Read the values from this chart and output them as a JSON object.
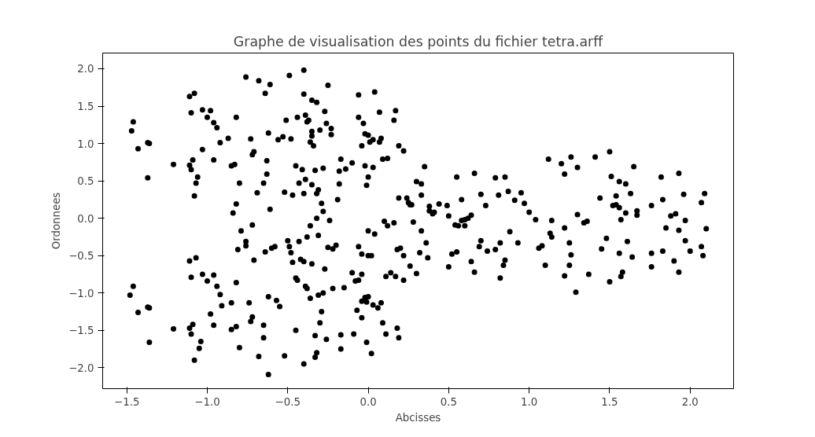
{
  "chart_data": {
    "type": "scatter",
    "title": "Graphe de visualisation des points du fichier tetra.arff",
    "xlabel": "Abcisses",
    "ylabel": "Ordonnees",
    "xlim": [
      -1.65,
      2.27
    ],
    "ylim": [
      -2.28,
      2.21
    ],
    "xticks": [
      {
        "value": -1.5,
        "label": "−1.5"
      },
      {
        "value": -1.0,
        "label": "−1.0"
      },
      {
        "value": -0.5,
        "label": "−0.5"
      },
      {
        "value": 0.0,
        "label": "0.0"
      },
      {
        "value": 0.5,
        "label": "0.5"
      },
      {
        "value": 1.0,
        "label": "1.0"
      },
      {
        "value": 1.5,
        "label": "1.5"
      },
      {
        "value": 2.0,
        "label": "2.0"
      }
    ],
    "yticks": [
      {
        "value": -2.0,
        "label": "−2.0"
      },
      {
        "value": -1.5,
        "label": "−1.5"
      },
      {
        "value": -1.0,
        "label": "−1.0"
      },
      {
        "value": -0.5,
        "label": "−0.5"
      },
      {
        "value": 0.0,
        "label": "0.0"
      },
      {
        "value": 0.5,
        "label": "0.5"
      },
      {
        "value": 1.0,
        "label": "1.0"
      },
      {
        "value": 1.5,
        "label": "1.5"
      },
      {
        "value": 2.0,
        "label": "2.0"
      }
    ],
    "grid": false,
    "marker": "circle",
    "series": [
      {
        "color": "#000000",
        "x": [
          -1.47,
          -1.46,
          -1.43,
          -1.37,
          -1.36,
          -1.37,
          -1.21,
          -1.11,
          -1.1,
          -1.08,
          -1.11,
          -1.09,
          -1.1,
          -1.07,
          -1.06,
          -1.08,
          -1.03,
          -1.0,
          -0.98,
          -0.96,
          -0.94,
          -0.92,
          -0.96,
          -1.03,
          -0.87,
          -0.85,
          -0.83,
          -0.82,
          -0.8,
          -0.84,
          -0.82,
          -0.79,
          -0.76,
          -0.72,
          -0.72,
          -0.71,
          -0.73,
          -0.76,
          -0.68,
          -0.64,
          -0.61,
          -0.62,
          -0.63,
          -0.63,
          -0.65,
          -0.69,
          -0.61,
          -0.56,
          -0.53,
          -0.51,
          -0.49,
          -0.48,
          -0.52,
          -0.45,
          -0.44,
          -0.4,
          -0.4,
          -0.39,
          -0.38,
          -0.37,
          -0.36,
          -0.35,
          -0.35,
          -0.35,
          -0.34,
          -0.32,
          -0.33,
          -0.32,
          -0.31,
          -0.3,
          -0.27,
          -0.26,
          -0.25,
          -0.23,
          -0.23,
          -0.28,
          -0.29,
          -0.28,
          -0.35,
          -0.39,
          -0.41,
          -0.43,
          -0.47,
          -0.4,
          -0.32,
          -0.24,
          -0.19,
          -0.18,
          -0.17,
          -0.18,
          -0.14,
          -0.1,
          -0.06,
          -0.06,
          -0.03,
          -0.02,
          0.0,
          0.01,
          0.04,
          0.03,
          0.07,
          0.08,
          0.07,
          -0.04,
          -0.02,
          0.0,
          -0.01,
          0.03,
          0.09,
          0.12,
          0.17,
          0.16,
          0.19,
          0.22,
          0.19,
          0.24,
          0.26,
          0.27,
          0.25,
          0.3,
          0.33,
          0.35,
          0.33,
          0.38,
          0.4,
          0.41,
          0.38,
          0.44,
          0.49,
          0.5,
          0.55,
          0.58,
          0.64,
          0.62,
          0.66,
          0.7,
          0.73,
          0.79,
          0.81,
          0.85,
          0.87,
          0.91,
          0.95,
          0.97,
          1.0,
          1.04,
          1.12,
          1.2,
          1.22,
          1.26,
          1.3,
          1.41,
          1.5,
          1.51,
          1.54,
          1.56,
          1.6,
          1.65,
          1.63,
          1.67,
          1.67,
          1.82,
          1.83,
          1.93,
          1.96,
          2.09,
          2.07,
          1.76,
          1.88,
          1.91,
          1.97,
          1.85,
          1.93,
          2.1,
          1.48,
          1.52,
          1.54,
          1.56,
          1.6,
          1.57,
          1.44,
          1.36,
          1.34,
          1.3,
          1.22,
          1.14,
          1.13,
          1.14,
          1.08,
          1.06,
          1.1,
          1.25,
          1.26,
          1.22,
          1.25,
          1.29,
          1.37,
          1.45,
          1.5,
          1.57,
          1.58,
          1.56,
          1.61,
          1.64,
          1.76,
          1.76,
          1.83,
          1.9,
          1.93,
          1.97,
          2.0,
          2.07,
          2.08,
          0.88,
          0.93,
          0.85,
          0.84,
          0.79,
          0.82,
          0.82,
          0.74,
          0.69,
          0.7,
          0.64,
          0.66,
          0.6,
          0.56,
          0.54,
          0.55,
          0.52,
          0.5,
          0.58,
          0.6,
          0.36,
          0.37,
          0.32,
          0.33,
          0.28,
          0.26,
          0.3,
          0.22,
          0.2,
          0.22,
          0.14,
          0.11,
          0.12,
          0.16,
          0.1,
          0.04,
          0.0,
          0.02,
          0.0,
          -0.04,
          -0.04,
          -0.06,
          -0.1,
          -0.06,
          -1.48,
          -1.46,
          -1.43,
          -1.37,
          -1.36,
          -1.36,
          -1.21,
          -1.11,
          -1.1,
          -1.07,
          -1.11,
          -1.09,
          -1.1,
          -1.08,
          -1.05,
          -1.04,
          -1.03,
          -1.0,
          -0.98,
          -0.96,
          -0.94,
          -0.92,
          -0.91,
          -0.96,
          -0.85,
          -0.85,
          -0.82,
          -0.82,
          -0.81,
          -0.8,
          -0.76,
          -0.74,
          -0.72,
          -0.73,
          -0.71,
          -0.68,
          -0.65,
          -0.65,
          -0.64,
          -0.62,
          -0.62,
          -0.6,
          -0.58,
          -0.57,
          -0.55,
          -0.52,
          -0.5,
          -0.49,
          -0.48,
          -0.47,
          -0.45,
          -0.45,
          -0.44,
          -0.43,
          -0.42,
          -0.4,
          -0.4,
          -0.39,
          -0.38,
          -0.36,
          -0.35,
          -0.33,
          -0.33,
          -0.32,
          -0.31,
          -0.3,
          -0.29,
          -0.28,
          -0.27,
          -0.26,
          -0.25,
          -0.22,
          -0.22,
          -0.2,
          -0.17,
          -0.17,
          -0.15,
          -0.09,
          -0.07,
          -0.08,
          -0.04,
          -0.04,
          -0.02,
          0.0,
          -0.01,
          -0.01,
          0.02,
          0.03,
          0.06,
          0.08,
          0.09,
          0.11,
          0.18,
          0.19,
          0.17,
          0.18,
          -0.36,
          -0.38,
          -0.31
        ],
        "values": [
          1.17,
          1.29,
          0.93,
          1.01,
          1.0,
          0.54,
          0.72,
          1.63,
          1.41,
          1.67,
          0.71,
          0.78,
          0.65,
          0.47,
          0.55,
          0.3,
          1.45,
          1.35,
          1.44,
          1.28,
          1.21,
          1.01,
          0.78,
          0.92,
          1.07,
          0.7,
          0.72,
          1.35,
          0.47,
          0.07,
          0.19,
          -0.17,
          -0.31,
          -0.09,
          0.85,
          0.89,
          1.06,
          1.89,
          1.84,
          1.67,
          1.79,
          1.14,
          0.77,
          0.59,
          0.47,
          0.34,
          0.12,
          1.05,
          1.09,
          1.31,
          1.91,
          1.06,
          0.35,
          0.7,
          1.35,
          1.98,
          1.66,
          1.38,
          1.29,
          1.31,
          1.02,
          1.58,
          1.16,
          1.1,
          0.97,
          1.55,
          0.64,
          0.33,
          0.38,
          1.18,
          1.43,
          1.27,
          1.78,
          1.12,
          1.2,
          0.67,
          0.2,
          0.09,
          0.45,
          0.52,
          0.65,
          0.47,
          0.31,
          0.33,
          0.0,
          -0.03,
          0.25,
          0.63,
          0.79,
          0.46,
          0.66,
          0.74,
          1.65,
          1.35,
          1.27,
          1.13,
          1.11,
          1.02,
          1.69,
          1.05,
          1.42,
          1.07,
          1.02,
          0.97,
          0.7,
          0.55,
          0.44,
          0.68,
          0.79,
          0.8,
          1.44,
          1.31,
          0.97,
          0.9,
          0.27,
          0.27,
          0.18,
          0.18,
          0.21,
          0.49,
          0.46,
          0.69,
          0.31,
          0.1,
          0.06,
          0.08,
          0.16,
          0.19,
          0.17,
          0.03,
          0.55,
          0.25,
          0.04,
          0.0,
          0.6,
          0.32,
          0.17,
          0.54,
          0.31,
          0.55,
          0.36,
          0.24,
          0.34,
          0.2,
          0.08,
          -0.02,
          0.79,
          0.73,
          0.59,
          0.82,
          0.68,
          0.82,
          0.89,
          0.56,
          0.3,
          0.49,
          0.46,
          0.69,
          0.33,
          0.1,
          0.04,
          0.55,
          0.25,
          0.6,
          0.32,
          0.33,
          0.21,
          0.17,
          0.03,
          0.06,
          -0.03,
          -0.13,
          -0.16,
          -0.14,
          -0.27,
          0.17,
          0.18,
          0.14,
          0.07,
          -0.02,
          0.27,
          -0.04,
          -0.06,
          0.05,
          -0.13,
          -0.03,
          -0.2,
          -0.25,
          -0.37,
          -0.4,
          -0.63,
          -0.33,
          -0.49,
          -0.77,
          -0.63,
          -0.99,
          -0.75,
          -0.41,
          -0.85,
          -0.78,
          -0.72,
          -0.47,
          -0.31,
          -0.52,
          -0.47,
          -0.65,
          -0.44,
          -0.57,
          -0.72,
          -0.3,
          -0.44,
          -0.38,
          -0.5,
          -0.18,
          -0.33,
          -0.56,
          -0.63,
          -0.42,
          -0.33,
          -0.8,
          -0.44,
          -0.38,
          -0.3,
          -0.58,
          -0.72,
          -0.1,
          -0.1,
          -0.09,
          -0.45,
          -0.48,
          -0.65,
          -0.03,
          -0.02,
          -0.33,
          -0.53,
          -0.46,
          -0.17,
          -0.05,
          -0.64,
          -0.74,
          -0.5,
          -0.4,
          -0.83,
          -0.73,
          -0.78,
          -0.1,
          -0.06,
          -0.04,
          -0.21,
          -0.17,
          -0.5,
          -0.5,
          -0.48,
          -0.75,
          -0.83,
          -0.73,
          -0.38,
          -1.03,
          -0.91,
          -1.26,
          -1.19,
          -1.2,
          -1.66,
          -1.48,
          -0.57,
          -0.79,
          -0.53,
          -1.47,
          -1.42,
          -1.55,
          -1.9,
          -1.74,
          -1.65,
          -0.75,
          -0.84,
          -1.28,
          -0.76,
          -0.91,
          -1.02,
          -1.17,
          -1.43,
          -1.13,
          -1.49,
          -1.45,
          -0.86,
          -0.42,
          -1.73,
          -0.37,
          -1.13,
          -1.32,
          -1.38,
          -0.56,
          -1.85,
          -1.6,
          -1.43,
          -0.45,
          -2.09,
          -1.05,
          -0.4,
          -0.38,
          -1.1,
          -1.18,
          -1.84,
          -0.3,
          -0.38,
          -0.46,
          -0.59,
          -0.8,
          -1.5,
          -0.83,
          -0.31,
          -0.55,
          -1.95,
          -0.58,
          -0.91,
          -0.94,
          -1.07,
          -0.61,
          -1.57,
          -1.86,
          -1.8,
          -1.03,
          -1.4,
          -1.25,
          -1.0,
          -0.68,
          -1.62,
          -0.39,
          -0.41,
          -0.94,
          -0.36,
          -1.56,
          -1.75,
          -0.93,
          -1.55,
          -1.23,
          -0.84,
          -1.11,
          -1.33,
          -1.06,
          -1.05,
          -1.12,
          -1.66,
          -1.81,
          -1.16,
          -1.2,
          -1.13,
          -1.4,
          -1.55,
          -1.47,
          -1.6,
          -0.78,
          -0.42,
          -0.1,
          -0.25,
          -0.23
        ]
      }
    ]
  }
}
